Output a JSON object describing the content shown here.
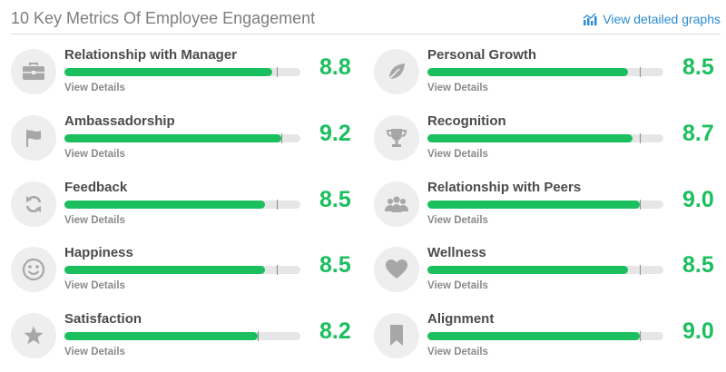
{
  "header": {
    "title": "10 Key Metrics Of Employee Engagement",
    "graphs_link": "View detailed graphs"
  },
  "colors": {
    "accent": "#1bbf5e",
    "link": "#2d8bd1",
    "track": "#e6e6e6",
    "icon_bg": "#eeeeee",
    "icon_fg": "#a7a7a7"
  },
  "metrics": [
    {
      "name": "Relationship with Manager",
      "score": "8.8",
      "value": 8.8,
      "benchmark": 9.0,
      "view_label": "View Details",
      "icon": "briefcase-icon"
    },
    {
      "name": "Ambassadorship",
      "score": "9.2",
      "value": 9.2,
      "benchmark": 9.2,
      "view_label": "View Details",
      "icon": "flag-icon"
    },
    {
      "name": "Feedback",
      "score": "8.5",
      "value": 8.5,
      "benchmark": 9.0,
      "view_label": "View Details",
      "icon": "refresh-icon"
    },
    {
      "name": "Happiness",
      "score": "8.5",
      "value": 8.5,
      "benchmark": 9.0,
      "view_label": "View Details",
      "icon": "smiley-icon"
    },
    {
      "name": "Satisfaction",
      "score": "8.2",
      "value": 8.2,
      "benchmark": 8.2,
      "view_label": "View Details",
      "icon": "star-icon"
    },
    {
      "name": "Personal Growth",
      "score": "8.5",
      "value": 8.5,
      "benchmark": 9.0,
      "view_label": "View Details",
      "icon": "leaf-icon"
    },
    {
      "name": "Recognition",
      "score": "8.7",
      "value": 8.7,
      "benchmark": 9.0,
      "view_label": "View Details",
      "icon": "trophy-icon"
    },
    {
      "name": "Relationship with Peers",
      "score": "9.0",
      "value": 9.0,
      "benchmark": 9.0,
      "view_label": "View Details",
      "icon": "peers-icon"
    },
    {
      "name": "Wellness",
      "score": "8.5",
      "value": 8.5,
      "benchmark": 9.0,
      "view_label": "View Details",
      "icon": "heart-icon"
    },
    {
      "name": "Alignment",
      "score": "9.0",
      "value": 9.0,
      "benchmark": 9.0,
      "view_label": "View Details",
      "icon": "bookmark-icon"
    }
  ]
}
